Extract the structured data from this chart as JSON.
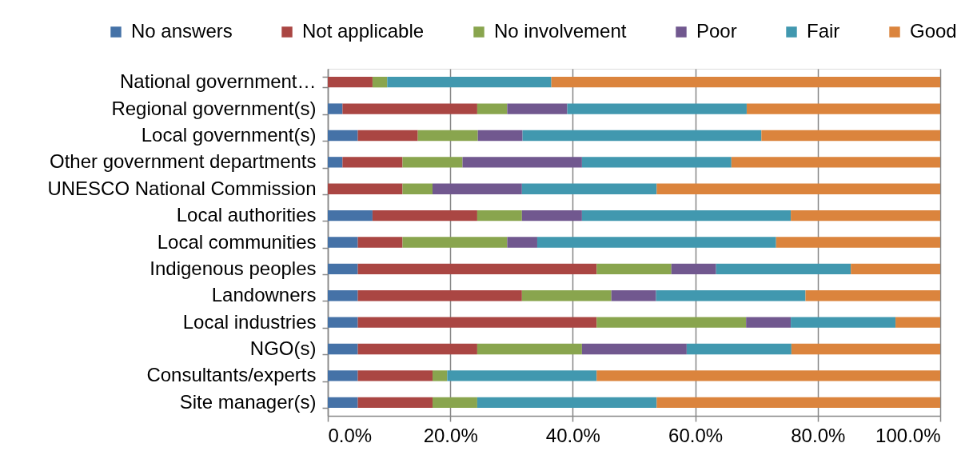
{
  "chart_data": {
    "type": "bar",
    "orientation": "horizontal",
    "stacked": true,
    "categories": [
      "National government…",
      "Regional government(s)",
      "Local government(s)",
      "Other government departments",
      "UNESCO National Commission",
      "Local authorities",
      "Local communities",
      "Indigenous peoples",
      "Landowners",
      "Local industries",
      "NGO(s)",
      "Consultants/experts",
      "Site manager(s)"
    ],
    "series": [
      {
        "name": "No answers",
        "color": "#4572a7",
        "values": [
          0,
          2.4,
          4.9,
          2.4,
          0,
          7.3,
          4.9,
          4.9,
          4.9,
          4.9,
          4.9,
          4.9,
          4.9
        ]
      },
      {
        "name": "Not applicable",
        "color": "#aa4643",
        "values": [
          7.3,
          22.0,
          9.8,
          9.8,
          12.2,
          17.1,
          7.3,
          39.0,
          26.8,
          39.0,
          19.5,
          12.2,
          12.2
        ]
      },
      {
        "name": "No involvement",
        "color": "#89a54e",
        "values": [
          2.4,
          4.9,
          9.8,
          9.8,
          4.9,
          7.3,
          17.1,
          12.2,
          14.6,
          24.4,
          17.1,
          2.4,
          7.3
        ]
      },
      {
        "name": "Poor",
        "color": "#71588f",
        "values": [
          0,
          9.8,
          7.3,
          19.5,
          14.6,
          9.8,
          4.9,
          7.3,
          7.3,
          7.3,
          17.1,
          0,
          0
        ]
      },
      {
        "name": "Fair",
        "color": "#4198af",
        "values": [
          26.8,
          29.3,
          39.0,
          24.4,
          22.0,
          34.1,
          39.0,
          22.0,
          24.4,
          17.1,
          17.1,
          24.4,
          29.3
        ]
      },
      {
        "name": "Good",
        "color": "#db843d",
        "values": [
          63.5,
          31.6,
          29.2,
          34.1,
          46.3,
          24.4,
          26.8,
          14.6,
          22.0,
          7.3,
          24.3,
          56.1,
          46.3
        ]
      }
    ],
    "xlim": [
      0,
      100
    ],
    "xticks": [
      {
        "value": 0,
        "label": "0.0%"
      },
      {
        "value": 20,
        "label": "20.0%"
      },
      {
        "value": 40,
        "label": "40.0%"
      },
      {
        "value": 60,
        "label": "60.0%"
      },
      {
        "value": 80,
        "label": "80.0%"
      },
      {
        "value": 100,
        "label": "100.0%"
      }
    ],
    "grid": "x",
    "legend": "top"
  }
}
